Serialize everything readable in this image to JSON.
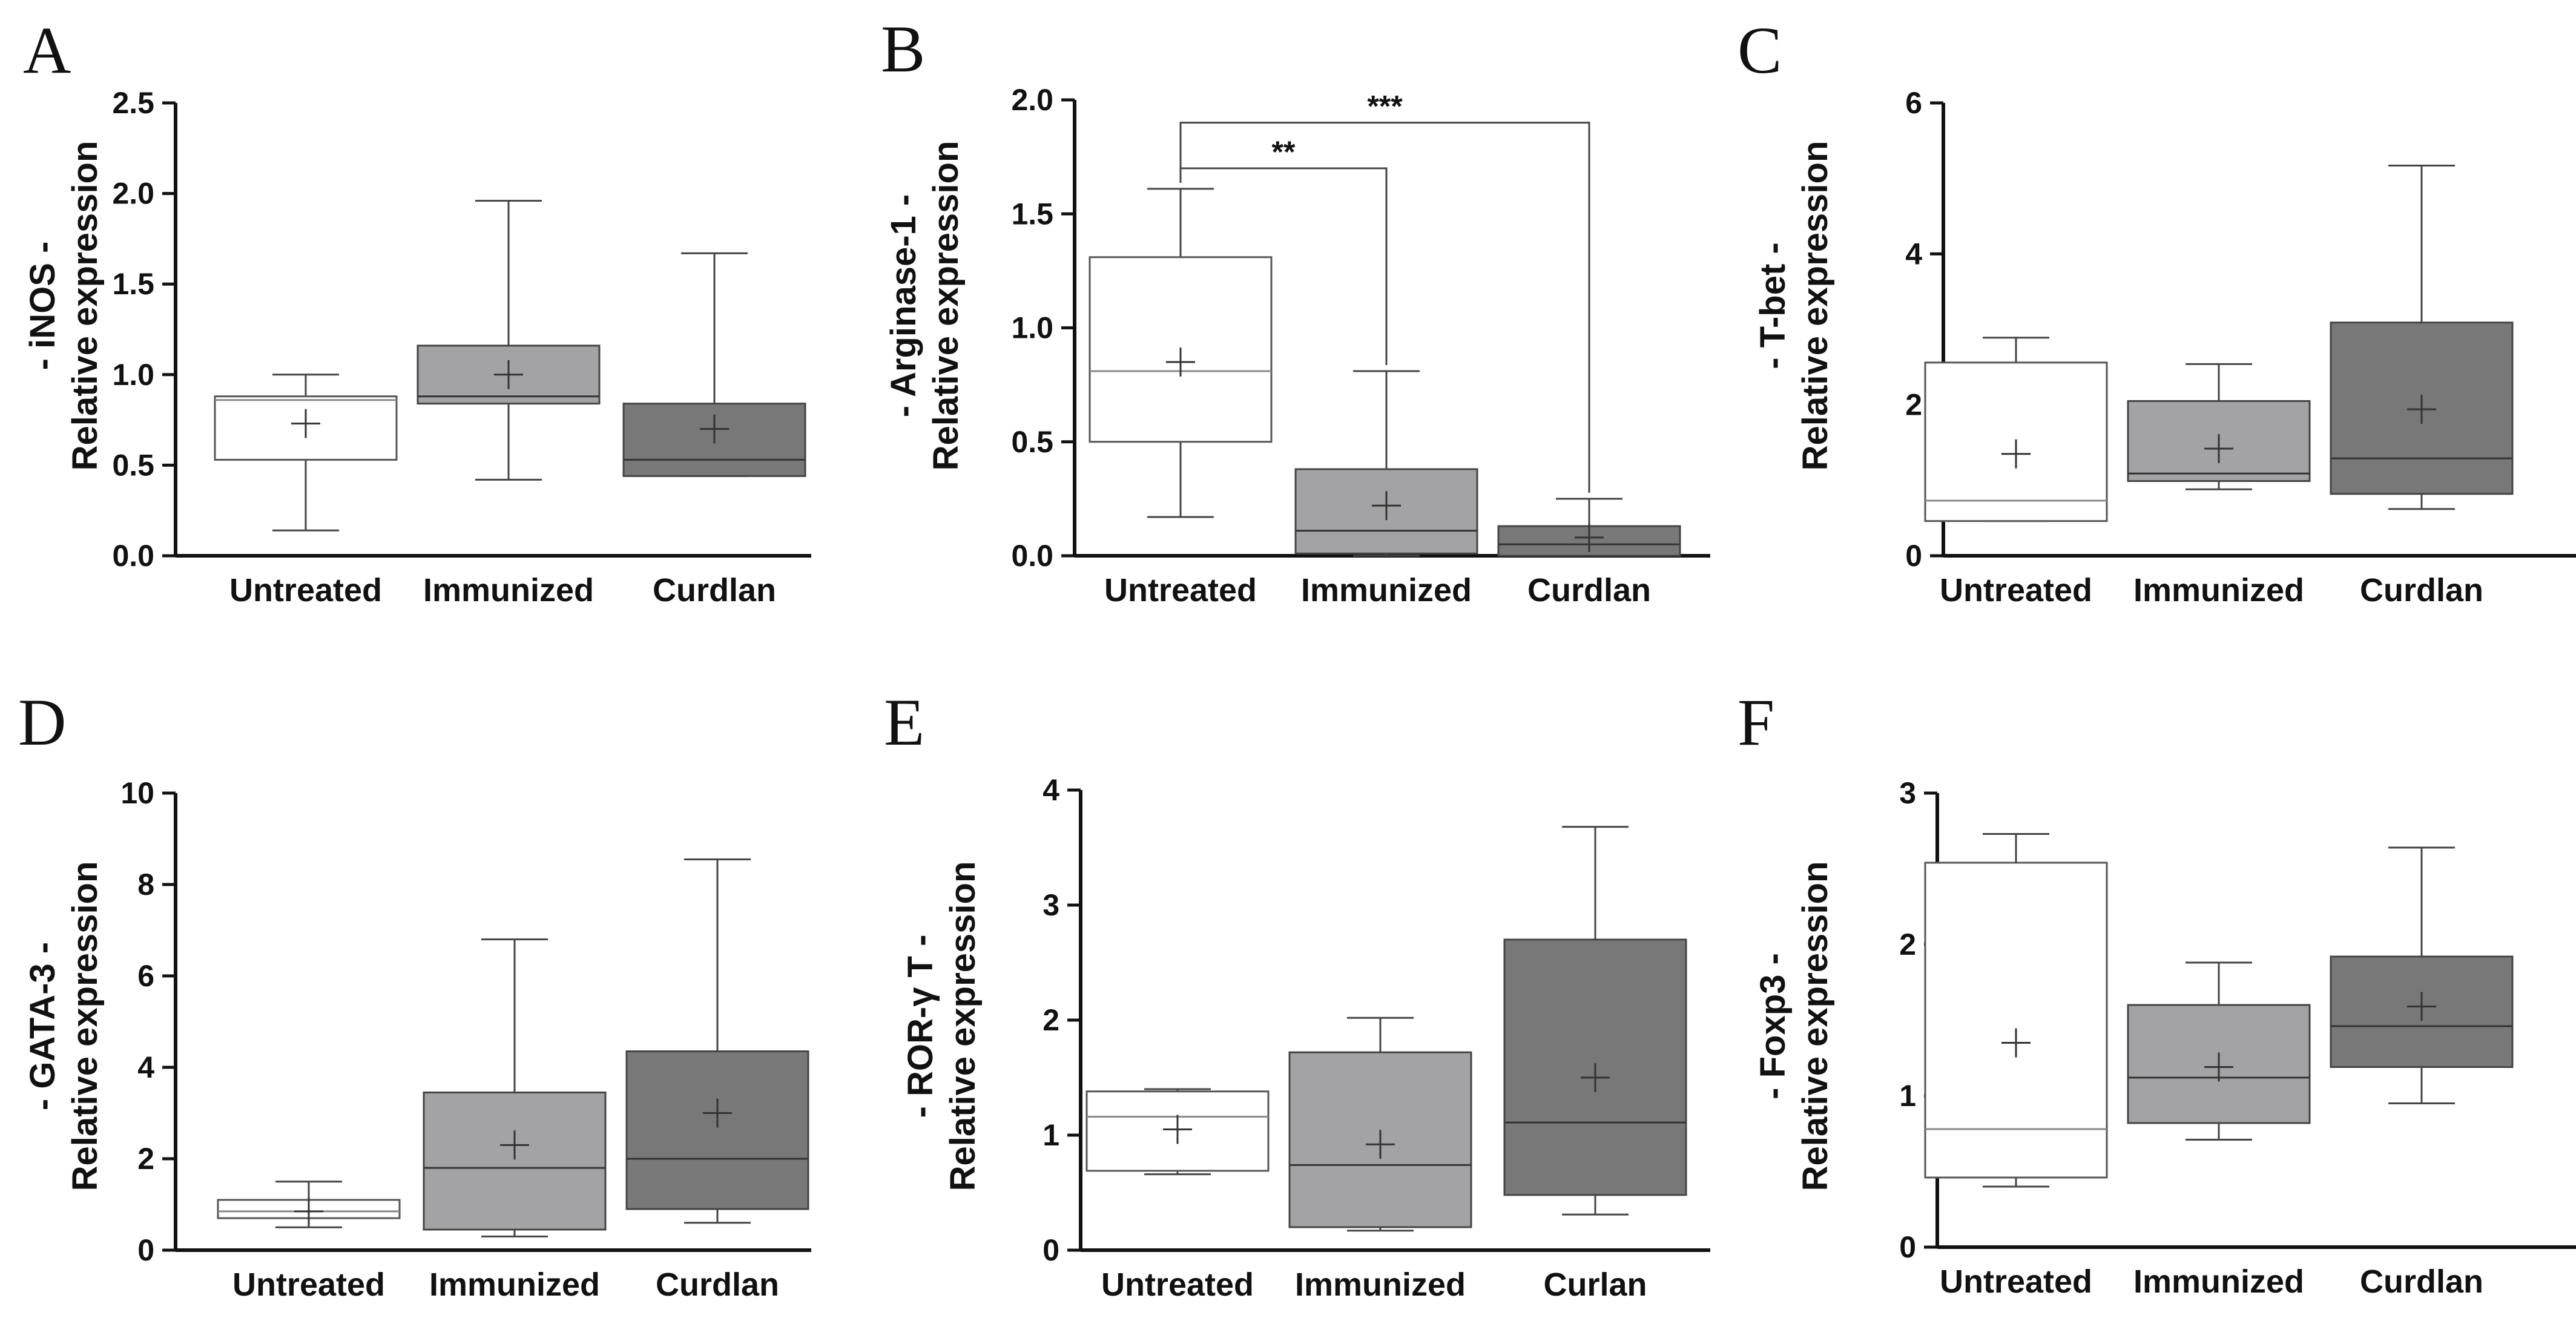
{
  "colors": {
    "untreated": "#ffffff",
    "immunized": "#a3a3a5",
    "curdlan": "#787878",
    "axis": "#111111"
  },
  "chart_data": [
    {
      "panel": "A",
      "type": "box",
      "ylabel_lines": [
        "- iNOS -",
        "Relative expression"
      ],
      "ylim": [
        0,
        2.5
      ],
      "ticks": [
        0.0,
        0.5,
        1.0,
        1.5,
        2.0,
        2.5
      ],
      "tick_labels": [
        "0.0",
        "0.5",
        "1.0",
        "1.5",
        "2.0",
        "2.5"
      ],
      "categories": [
        "Untreated",
        "Immunized",
        "Curdlan"
      ],
      "boxes": [
        {
          "min": 0.14,
          "q1": 0.53,
          "median": 0.86,
          "q3": 0.88,
          "max": 1.0,
          "mean": 0.73
        },
        {
          "min": 0.42,
          "q1": 0.84,
          "median": 0.88,
          "q3": 1.16,
          "max": 1.96,
          "mean": 1.0
        },
        {
          "min": 0.44,
          "q1": 0.44,
          "median": 0.53,
          "q3": 0.84,
          "max": 1.67,
          "mean": 0.7
        }
      ],
      "significance": []
    },
    {
      "panel": "B",
      "type": "box",
      "ylabel_lines": [
        "- Arginase-1 -",
        "Relative expression"
      ],
      "ylim": [
        0,
        2.0
      ],
      "ticks": [
        0.0,
        0.5,
        1.0,
        1.5,
        2.0
      ],
      "tick_labels": [
        "0.0",
        "0.5",
        "1.0",
        "1.5",
        "2.0"
      ],
      "categories": [
        "Untreated",
        "Immunized",
        "Curdlan"
      ],
      "boxes": [
        {
          "min": 0.17,
          "q1": 0.5,
          "median": 0.81,
          "q3": 1.31,
          "max": 1.61,
          "mean": 0.85
        },
        {
          "min": 0.0,
          "q1": 0.01,
          "median": 0.11,
          "q3": 0.38,
          "max": 0.81,
          "mean": 0.22
        },
        {
          "min": 0.0,
          "q1": 0.0,
          "median": 0.05,
          "q3": 0.13,
          "max": 0.25,
          "mean": 0.08
        }
      ],
      "significance": [
        {
          "from": 0,
          "to": 1,
          "level": 1.7,
          "label": "**"
        },
        {
          "from": 0,
          "to": 2,
          "level": 1.9,
          "label": "***"
        }
      ]
    },
    {
      "panel": "C",
      "type": "box",
      "ylabel_lines": [
        "- T-bet -",
        "Relative expression"
      ],
      "ylim": [
        0,
        6
      ],
      "ticks": [
        0,
        2,
        4,
        6
      ],
      "tick_labels": [
        "0",
        "2",
        "4",
        "6"
      ],
      "categories": [
        "Untreated",
        "Immunized",
        "Curdlan"
      ],
      "boxes": [
        {
          "min": 0.46,
          "q1": 0.46,
          "median": 0.73,
          "q3": 2.56,
          "max": 2.89,
          "mean": 1.35
        },
        {
          "min": 0.88,
          "q1": 0.99,
          "median": 1.09,
          "q3": 2.05,
          "max": 2.54,
          "mean": 1.42
        },
        {
          "min": 0.62,
          "q1": 0.82,
          "median": 1.29,
          "q3": 3.09,
          "max": 5.17,
          "mean": 1.94
        }
      ],
      "significance": []
    },
    {
      "panel": "D",
      "type": "box",
      "ylabel_lines": [
        "- GATA-3 -",
        "Relative expression"
      ],
      "ylim": [
        0,
        10
      ],
      "ticks": [
        0,
        2,
        4,
        6,
        8,
        10
      ],
      "tick_labels": [
        "0",
        "2",
        "4",
        "6",
        "8",
        "10"
      ],
      "categories": [
        "Untreated",
        "Immunized",
        "Curdlan"
      ],
      "boxes": [
        {
          "min": 0.5,
          "q1": 0.7,
          "median": 0.85,
          "q3": 1.1,
          "max": 1.5,
          "mean": 0.85
        },
        {
          "min": 0.3,
          "q1": 0.45,
          "median": 1.8,
          "q3": 3.45,
          "max": 6.8,
          "mean": 2.3
        },
        {
          "min": 0.6,
          "q1": 0.9,
          "median": 2.0,
          "q3": 4.35,
          "max": 8.55,
          "mean": 3.0
        }
      ],
      "significance": []
    },
    {
      "panel": "E",
      "type": "box",
      "ylabel_lines": [
        "- ROR-γ T -",
        "Relative expression"
      ],
      "ylim": [
        0,
        4
      ],
      "ticks": [
        0,
        1,
        2,
        3,
        4
      ],
      "tick_labels": [
        "0",
        "1",
        "2",
        "3",
        "4"
      ],
      "categories": [
        "Untreated",
        "Immunized",
        "Curlan"
      ],
      "boxes": [
        {
          "min": 0.66,
          "q1": 0.69,
          "median": 1.16,
          "q3": 1.38,
          "max": 1.4,
          "mean": 1.05
        },
        {
          "min": 0.17,
          "q1": 0.2,
          "median": 0.74,
          "q3": 1.72,
          "max": 2.02,
          "mean": 0.92
        },
        {
          "min": 0.31,
          "q1": 0.48,
          "median": 1.11,
          "q3": 2.7,
          "max": 3.68,
          "mean": 1.5
        }
      ],
      "significance": []
    },
    {
      "panel": "F",
      "type": "box",
      "ylabel_lines": [
        "- Foxp3 -",
        "Relative expression"
      ],
      "ylim": [
        0,
        3
      ],
      "ticks": [
        0,
        1,
        2,
        3
      ],
      "tick_labels": [
        "0",
        "1",
        "2",
        "3"
      ],
      "categories": [
        "Untreated",
        "Immunized",
        "Curdlan"
      ],
      "boxes": [
        {
          "min": 0.4,
          "q1": 0.46,
          "median": 0.78,
          "q3": 2.54,
          "max": 2.73,
          "mean": 1.35
        },
        {
          "min": 0.71,
          "q1": 0.82,
          "median": 1.12,
          "q3": 1.6,
          "max": 1.88,
          "mean": 1.19
        },
        {
          "min": 0.95,
          "q1": 1.19,
          "median": 1.46,
          "q3": 1.92,
          "max": 2.64,
          "mean": 1.59
        }
      ],
      "significance": []
    }
  ]
}
